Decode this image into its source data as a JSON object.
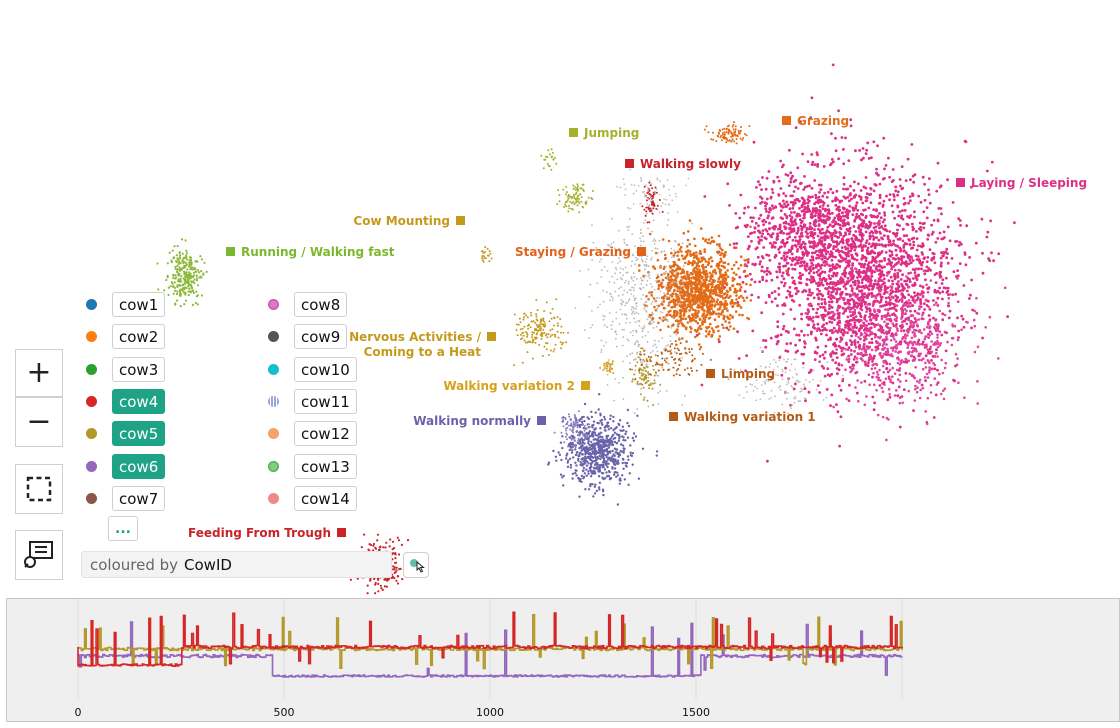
{
  "clusters": [
    {
      "name": "Jumping",
      "color": "#a3b12c"
    },
    {
      "name": "Grazing",
      "color": "#e36c18"
    },
    {
      "name": "Walking slowly",
      "color": "#c8242a"
    },
    {
      "name": "Laying / Sleeping",
      "color": "#dd2f86"
    },
    {
      "name": "Cow Mounting",
      "color": "#c49a1c"
    },
    {
      "name": "Running / Walking fast",
      "color": "#7cb82f"
    },
    {
      "name": "Staying / Grazing",
      "color": "#e2621b"
    },
    {
      "name": "Nervous Activities /",
      "color": "#c49a1c"
    },
    {
      "name": "Coming to a Heat",
      "color": "#c49a1c"
    },
    {
      "name": "Walking variation 2",
      "color": "#d4a21c"
    },
    {
      "name": "Limping",
      "color": "#b55c14"
    },
    {
      "name": "Walking normally",
      "color": "#6b63a9"
    },
    {
      "name": "Walking variation 1",
      "color": "#b55c14"
    },
    {
      "name": "Feeding From Trough",
      "color": "#c8242a"
    }
  ],
  "legend": {
    "items": [
      {
        "label": "cow1",
        "color": "#1f77b4",
        "selected": false
      },
      {
        "label": "cow2",
        "color": "#ff7f0e",
        "selected": false
      },
      {
        "label": "cow3",
        "color": "#2ca02c",
        "selected": false
      },
      {
        "label": "cow4",
        "color": "#d62728",
        "selected": true
      },
      {
        "label": "cow5",
        "color": "#b5982a",
        "selected": true
      },
      {
        "label": "cow6",
        "color": "#9467bd",
        "selected": true
      },
      {
        "label": "cow7",
        "color": "#8c564b",
        "selected": false
      },
      {
        "label": "cow8",
        "color": "#e377c2",
        "selected": false
      },
      {
        "label": "cow9",
        "color": "#555555",
        "selected": false
      },
      {
        "label": "cow10",
        "color": "#17becf",
        "selected": false
      },
      {
        "label": "cow11",
        "color": "#9aa7d6",
        "selected": false
      },
      {
        "label": "cow12",
        "color": "#f4a36b",
        "selected": false
      },
      {
        "label": "cow13",
        "color": "#7fcf7f",
        "selected": false
      },
      {
        "label": "cow14",
        "color": "#ef8a8a",
        "selected": false
      }
    ],
    "more": "..."
  },
  "coloured_by": {
    "prefix": "coloured by",
    "value": "CowID"
  },
  "toolbar": {
    "zoom_in": "+",
    "zoom_out": "−"
  },
  "timeline": {
    "x_ticks": [
      "0",
      "500",
      "1000",
      "1500"
    ]
  },
  "accent_color": "#1fa387"
}
